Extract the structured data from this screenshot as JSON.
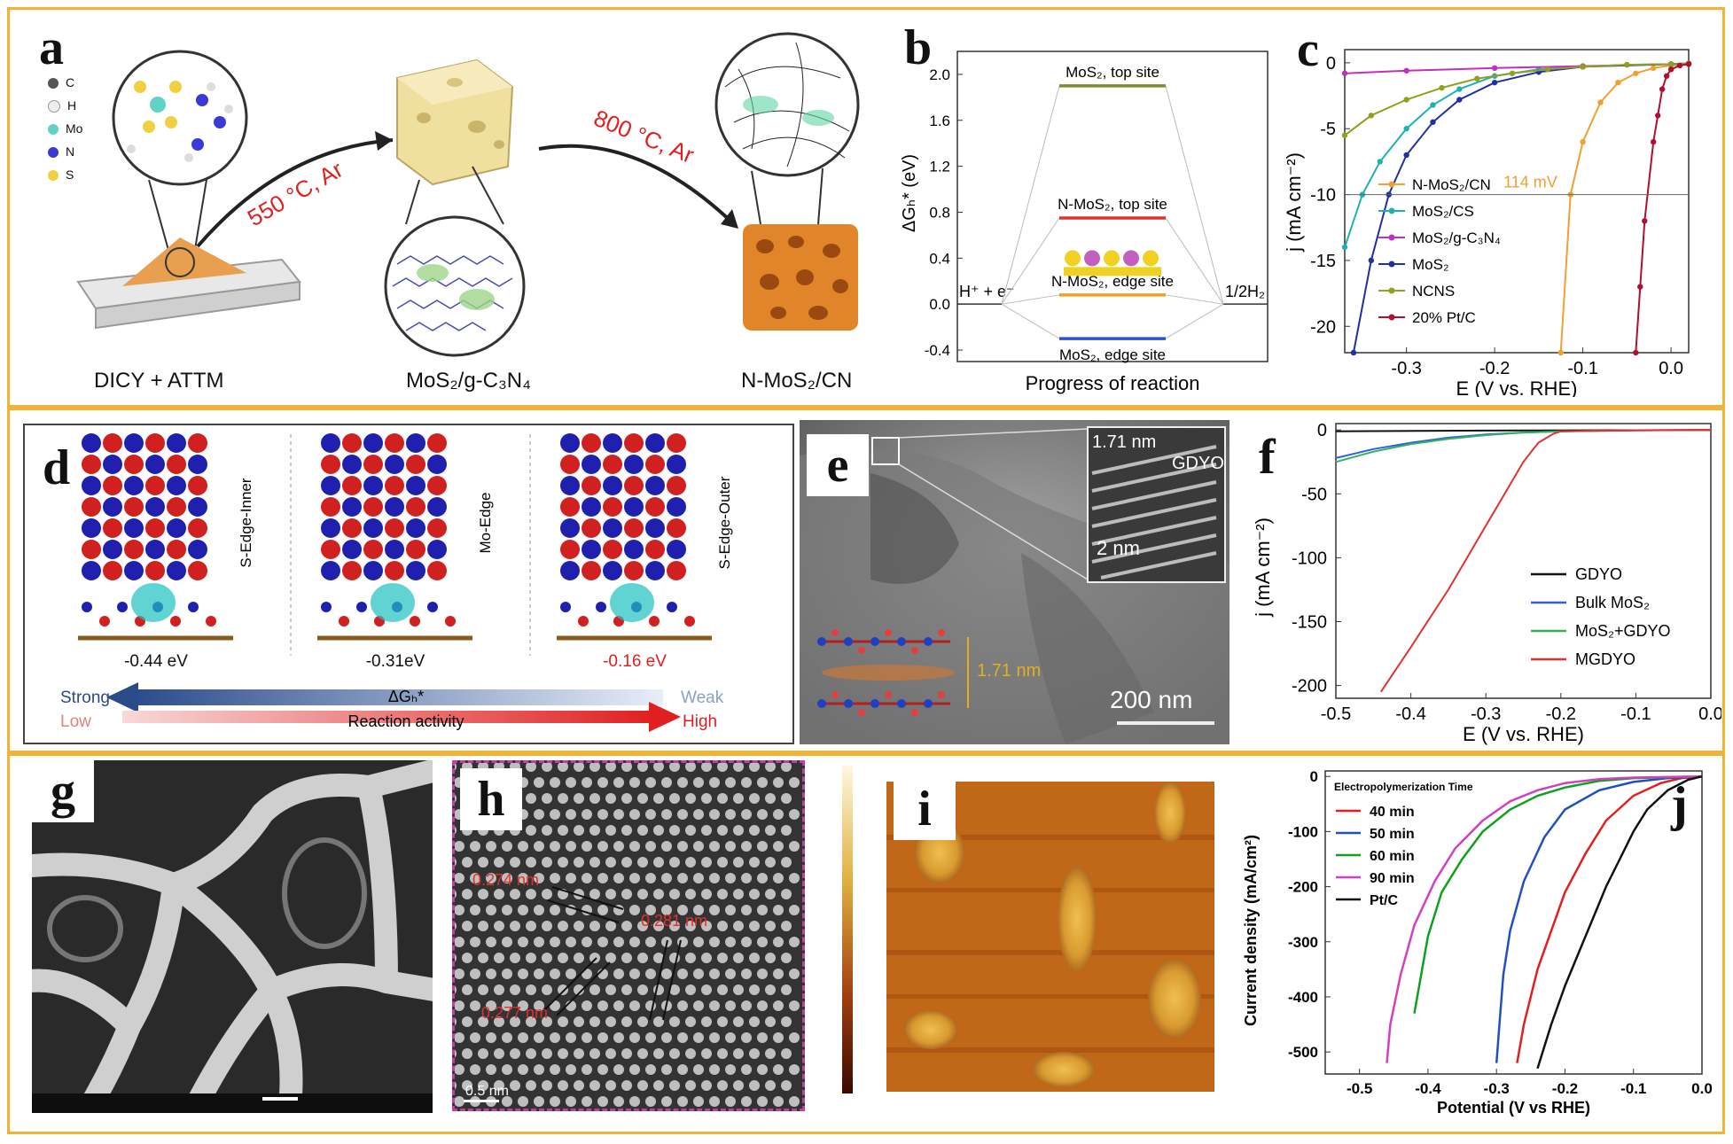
{
  "panels": {
    "a": {
      "label": "a",
      "legend": [
        "C",
        "H",
        "Mo",
        "N",
        "S"
      ],
      "legend_colors": [
        "#555555",
        "#eeeeee",
        "#5fd3c4",
        "#3a3ad6",
        "#f0d040"
      ],
      "step1": "550 °C, Ar",
      "step2": "800 °C, Ar",
      "captions": [
        "DICY + ATTM",
        "MoS₂/g-C₃N₄",
        "N-MoS₂/CN"
      ]
    },
    "b": {
      "label": "b",
      "ylabel": "ΔGₕ* (eV)",
      "xlabel": "Progress of reaction",
      "left": "H⁺ + e⁻",
      "right": "1/2H₂",
      "levels": [
        {
          "name": "MoS₂, top site",
          "value": 1.9,
          "color": "#7a8f2a"
        },
        {
          "name": "N-MoS₂, top site",
          "value": 0.75,
          "color": "#e03030"
        },
        {
          "name": "N-MoS₂, edge site",
          "value": 0.08,
          "color": "#f0a020"
        },
        {
          "name": "MoS₂, edge site",
          "value": -0.3,
          "color": "#3050d0"
        }
      ],
      "yticks": [
        -0.4,
        0.0,
        0.4,
        0.8,
        1.2,
        1.6,
        2.0
      ]
    },
    "c": {
      "label": "c",
      "ylabel": "j (mA cm⁻²)",
      "xlabel": "E (V vs. RHE)",
      "annotation": "114 mV",
      "xticks": [
        -0.3,
        -0.2,
        -0.1,
        0.0
      ],
      "yticks": [
        0,
        -5,
        -10,
        -15,
        -20
      ]
    },
    "d": {
      "label": "d",
      "sites": [
        "S-Edge-Inner",
        "Mo-Edge",
        "S-Edge-Outer"
      ],
      "energies": [
        "-0.44 eV",
        "-0.31eV",
        "-0.16 eV"
      ],
      "strong": "Strong",
      "weak": "Weak",
      "dg": "ΔGₕ*",
      "low": "Low",
      "high": "High",
      "activity": "Reaction activity"
    },
    "e": {
      "label": "e",
      "scale": "200 nm",
      "inset_scale": "2 nm",
      "inset_d": "1.71 nm",
      "inset_name": "GDYO",
      "spacing": "1.71 nm"
    },
    "f": {
      "label": "f",
      "ylabel": "j (mA cm⁻²)",
      "xlabel": "E (V vs. RHE)",
      "xticks": [
        "-0.5",
        "-0.4",
        "-0.3",
        "-0.2",
        "-0.1",
        "0.0"
      ],
      "yticks": [
        "0",
        "-50",
        "-100",
        "-150",
        "-200"
      ]
    },
    "g": {
      "label": "g"
    },
    "h": {
      "label": "h",
      "d1": "0.274 nm",
      "d2": "0.281 nm",
      "d3": "0.277 nm",
      "scale": "0.5 nm"
    },
    "i": {
      "label": "i"
    },
    "j": {
      "label": "j",
      "legend_title": "Electropolymerization Time",
      "ylabel": "Current density (mA/cm²)",
      "xlabel": "Potential (V vs RHE)",
      "xticks": [
        "-0.5",
        "-0.4",
        "-0.3",
        "-0.2",
        "-0.1",
        "0.0"
      ],
      "yticks": [
        "0",
        "-100",
        "-200",
        "-300",
        "-400",
        "-500"
      ]
    }
  },
  "chart_data": [
    {
      "type": "line",
      "panel": "c",
      "xlabel": "E (V vs. RHE)",
      "ylabel": "j (mA cm⁻²)",
      "xlim": [
        -0.37,
        0.02
      ],
      "ylim": [
        -22,
        1
      ],
      "series": [
        {
          "name": "N-MoS₂/CN",
          "color": "#f0a030",
          "onset": -0.114,
          "x": [
            -0.125,
            -0.114,
            -0.1,
            -0.08,
            -0.06,
            -0.04,
            -0.02,
            0.0,
            0.02
          ],
          "y": [
            -22,
            -10,
            -6,
            -3,
            -1.5,
            -0.8,
            -0.4,
            -0.2,
            -0.1
          ]
        },
        {
          "name": "MoS₂/CS",
          "color": "#20b0b0",
          "x": [
            -0.37,
            -0.35,
            -0.33,
            -0.3,
            -0.27,
            -0.24,
            -0.2,
            -0.15,
            -0.1,
            -0.05,
            0.0,
            0.02
          ],
          "y": [
            -14,
            -10,
            -7.5,
            -5,
            -3.2,
            -2,
            -1,
            -0.5,
            -0.3,
            -0.15,
            -0.1,
            -0.05
          ]
        },
        {
          "name": "MoS₂/g-C₃N₄",
          "color": "#c030c0",
          "x": [
            -0.37,
            -0.3,
            -0.2,
            -0.1,
            0.0,
            0.02
          ],
          "y": [
            -0.8,
            -0.6,
            -0.4,
            -0.25,
            -0.1,
            -0.05
          ]
        },
        {
          "name": "MoS₂",
          "color": "#2030a0",
          "x": [
            -0.36,
            -0.34,
            -0.32,
            -0.3,
            -0.27,
            -0.24,
            -0.2,
            -0.15,
            -0.1,
            0.0,
            0.02
          ],
          "y": [
            -22,
            -15,
            -10,
            -7,
            -4.5,
            -2.8,
            -1.5,
            -0.7,
            -0.3,
            -0.1,
            -0.05
          ]
        },
        {
          "name": "NCNS",
          "color": "#90a020",
          "x": [
            -0.37,
            -0.34,
            -0.3,
            -0.26,
            -0.22,
            -0.18,
            -0.14,
            -0.1,
            -0.05,
            0.0,
            0.02
          ],
          "y": [
            -5.5,
            -4,
            -2.8,
            -1.9,
            -1.2,
            -0.8,
            -0.5,
            -0.3,
            -0.15,
            -0.1,
            -0.05
          ]
        },
        {
          "name": "20% Pt/C",
          "color": "#b01030",
          "x": [
            -0.04,
            -0.035,
            -0.03,
            -0.02,
            -0.015,
            -0.01,
            -0.005,
            0.0,
            0.01,
            0.02
          ],
          "y": [
            -22,
            -17,
            -12,
            -6,
            -4,
            -2,
            -1,
            -0.5,
            -0.2,
            -0.1
          ]
        }
      ]
    },
    {
      "type": "line",
      "panel": "f",
      "xlabel": "E (V vs. RHE)",
      "ylabel": "j (mA cm⁻²)",
      "xlim": [
        -0.5,
        0.0
      ],
      "ylim": [
        -210,
        5
      ],
      "series": [
        {
          "name": "GDYO",
          "color": "#111111",
          "x": [
            -0.5,
            -0.3,
            -0.1,
            0.0
          ],
          "y": [
            -1,
            -0.5,
            -0.2,
            0
          ]
        },
        {
          "name": "Bulk MoS₂",
          "color": "#3060e0",
          "x": [
            -0.5,
            -0.45,
            -0.4,
            -0.35,
            -0.3,
            -0.25,
            -0.2,
            -0.1,
            0.0
          ],
          "y": [
            -22,
            -15,
            -10,
            -6,
            -3.5,
            -2,
            -1,
            -0.3,
            0
          ]
        },
        {
          "name": "MoS₂+GDYO",
          "color": "#30b060",
          "x": [
            -0.5,
            -0.45,
            -0.4,
            -0.35,
            -0.3,
            -0.25,
            -0.2,
            -0.1,
            0.0
          ],
          "y": [
            -25,
            -17,
            -11,
            -7,
            -4,
            -2,
            -1,
            -0.3,
            0
          ]
        },
        {
          "name": "MGDYO",
          "color": "#e03030",
          "x": [
            -0.44,
            -0.4,
            -0.35,
            -0.3,
            -0.27,
            -0.25,
            -0.23,
            -0.21,
            -0.2,
            -0.1,
            0.0
          ],
          "y": [
            -205,
            -170,
            -125,
            -75,
            -45,
            -25,
            -10,
            -3,
            -1,
            -0.3,
            0
          ]
        }
      ]
    },
    {
      "type": "line",
      "panel": "j",
      "xlabel": "Potential (V vs RHE)",
      "ylabel": "Current density (mA/cm²)",
      "xlim": [
        -0.55,
        0.0
      ],
      "ylim": [
        -540,
        10
      ],
      "series": [
        {
          "name": "40 min",
          "color": "#e02020",
          "x": [
            -0.27,
            -0.26,
            -0.24,
            -0.22,
            -0.2,
            -0.17,
            -0.14,
            -0.1,
            -0.06,
            -0.03,
            0.0
          ],
          "y": [
            -520,
            -450,
            -350,
            -280,
            -210,
            -140,
            -80,
            -35,
            -12,
            -3,
            0
          ]
        },
        {
          "name": "50 min",
          "color": "#2050c0",
          "x": [
            -0.3,
            -0.295,
            -0.29,
            -0.28,
            -0.26,
            -0.23,
            -0.2,
            -0.15,
            -0.1,
            -0.05,
            0.0
          ],
          "y": [
            -520,
            -440,
            -360,
            -280,
            -190,
            -110,
            -60,
            -25,
            -10,
            -3,
            0
          ]
        },
        {
          "name": "60 min",
          "color": "#10a020",
          "x": [
            -0.42,
            -0.41,
            -0.4,
            -0.38,
            -0.35,
            -0.32,
            -0.28,
            -0.24,
            -0.2,
            -0.15,
            -0.1,
            0.0
          ],
          "y": [
            -430,
            -360,
            -290,
            -210,
            -150,
            -100,
            -60,
            -35,
            -20,
            -8,
            -3,
            0
          ]
        },
        {
          "name": "90 min",
          "color": "#d040c0",
          "x": [
            -0.46,
            -0.455,
            -0.44,
            -0.42,
            -0.39,
            -0.36,
            -0.32,
            -0.28,
            -0.24,
            -0.2,
            -0.15,
            -0.1,
            0.0
          ],
          "y": [
            -520,
            -450,
            -360,
            -270,
            -190,
            -130,
            -80,
            -45,
            -25,
            -12,
            -5,
            -2,
            0
          ]
        },
        {
          "name": "Pt/C",
          "color": "#111111",
          "x": [
            -0.24,
            -0.22,
            -0.2,
            -0.18,
            -0.16,
            -0.14,
            -0.12,
            -0.1,
            -0.08,
            -0.05,
            -0.02,
            0.0
          ],
          "y": [
            -530,
            -450,
            -380,
            -320,
            -260,
            -200,
            -150,
            -100,
            -60,
            -25,
            -6,
            0
          ]
        }
      ]
    }
  ]
}
